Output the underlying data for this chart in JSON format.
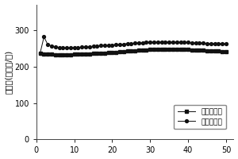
{
  "title": "",
  "xlabel": "",
  "ylabel": "比容量(毫安时/克)",
  "xlim": [
    0,
    52
  ],
  "ylim": [
    0,
    370
  ],
  "yticks": [
    0,
    100,
    200,
    300
  ],
  "xticks": [
    0,
    10,
    20,
    30,
    40,
    50
  ],
  "discharge_x": [
    1,
    2,
    3,
    4,
    5,
    6,
    7,
    8,
    9,
    10,
    11,
    12,
    13,
    14,
    15,
    16,
    17,
    18,
    19,
    20,
    21,
    22,
    23,
    24,
    25,
    26,
    27,
    28,
    29,
    30,
    31,
    32,
    33,
    34,
    35,
    36,
    37,
    38,
    39,
    40,
    41,
    42,
    43,
    44,
    45,
    46,
    47,
    48,
    49,
    50
  ],
  "discharge_y": [
    236,
    234,
    234,
    233,
    232,
    232,
    231,
    232,
    232,
    233,
    233,
    234,
    235,
    235,
    236,
    237,
    237,
    237,
    238,
    239,
    239,
    240,
    241,
    242,
    242,
    243,
    244,
    244,
    245,
    246,
    246,
    246,
    247,
    247,
    247,
    247,
    247,
    247,
    246,
    246,
    245,
    245,
    244,
    244,
    243,
    243,
    242,
    242,
    241,
    241
  ],
  "charge_x": [
    1,
    2,
    3,
    4,
    5,
    6,
    7,
    8,
    9,
    10,
    11,
    12,
    13,
    14,
    15,
    16,
    17,
    18,
    19,
    20,
    21,
    22,
    23,
    24,
    25,
    26,
    27,
    28,
    29,
    30,
    31,
    32,
    33,
    34,
    35,
    36,
    37,
    38,
    39,
    40,
    41,
    42,
    43,
    44,
    45,
    46,
    47,
    48,
    49,
    50
  ],
  "charge_y": [
    237,
    281,
    260,
    256,
    254,
    252,
    251,
    251,
    251,
    252,
    252,
    253,
    254,
    254,
    255,
    256,
    257,
    257,
    258,
    259,
    260,
    260,
    261,
    263,
    263,
    264,
    265,
    265,
    266,
    267,
    267,
    267,
    267,
    267,
    267,
    267,
    267,
    267,
    266,
    266,
    265,
    265,
    264,
    264,
    263,
    263,
    262,
    263,
    262,
    262
  ],
  "discharge_label": "放电比容量",
  "charge_label": "充电比容量",
  "line_color": "#111111",
  "bg_color": "#ffffff",
  "legend_fontsize": 6.5,
  "label_fontsize": 7.5,
  "tick_fontsize": 7
}
